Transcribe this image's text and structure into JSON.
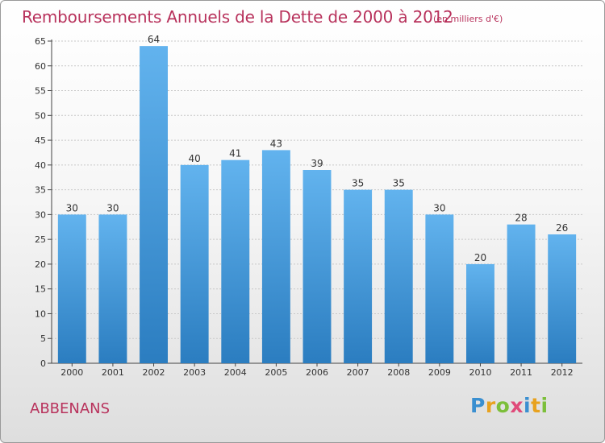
{
  "title": "Remboursements Annuels de la Dette de 2000 à 2012",
  "subtitle": "(en milliers d'€)",
  "commune": "ABBENANS",
  "logo": {
    "text": "Proxiti",
    "letter_colors": [
      "#3a8fd0",
      "#e8a21f",
      "#7cbf3a",
      "#e04a7a",
      "#3a8fd0",
      "#e8a21f",
      "#7cbf3a"
    ]
  },
  "colors": {
    "title": "#b8325c",
    "bar_top": "#62b3ee",
    "bar_bottom": "#2b7dc0",
    "grid": "#c8c8c8",
    "axis": "#444444"
  },
  "chart_data": {
    "type": "bar",
    "categories": [
      "2000",
      "2001",
      "2002",
      "2003",
      "2004",
      "2005",
      "2006",
      "2007",
      "2008",
      "2009",
      "2010",
      "2011",
      "2012"
    ],
    "values": [
      30,
      30,
      64,
      40,
      41,
      43,
      39,
      35,
      35,
      30,
      20,
      28,
      26
    ],
    "title": "Remboursements Annuels de la Dette de 2000 à 2012",
    "xlabel": "",
    "ylabel": "",
    "ylim": [
      0,
      65
    ],
    "yticks": [
      0,
      5,
      10,
      15,
      20,
      25,
      30,
      35,
      40,
      45,
      50,
      55,
      60,
      65
    ],
    "grid": true,
    "data_labels": true
  }
}
